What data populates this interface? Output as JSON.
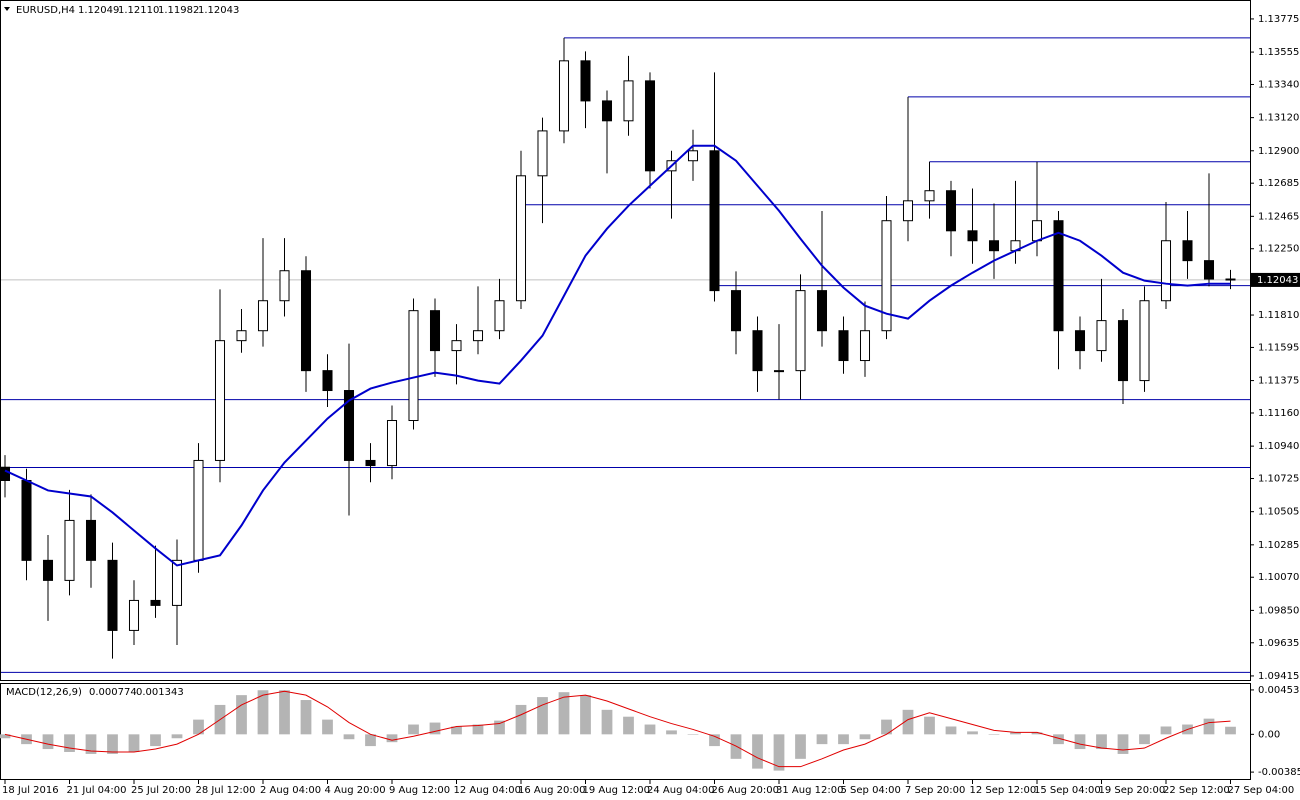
{
  "chart_data": [
    {
      "type": "candlestick",
      "symbol": "EURUSD,H4",
      "ohlc_labels": [
        "1.12049",
        "1.12110",
        "1.11982",
        "1.12043"
      ],
      "categories": [
        "18 Jul 2016",
        null,
        null,
        "21 Jul 04:00",
        null,
        null,
        "25 Jul 20:00",
        null,
        null,
        "28 Jul 12:00",
        null,
        null,
        "2 Aug 04:00",
        null,
        null,
        "4 Aug 20:00",
        null,
        null,
        "9 Aug 12:00",
        null,
        null,
        "12 Aug 04:00",
        null,
        null,
        "16 Aug 20:00",
        null,
        null,
        "19 Aug 12:00",
        null,
        null,
        "24 Aug 04:00",
        null,
        null,
        "26 Aug 20:00",
        null,
        null,
        "31 Aug 12:00",
        null,
        null,
        "5 Sep 04:00",
        null,
        null,
        "7 Sep 20:00",
        null,
        null,
        "12 Sep 12:00",
        null,
        null,
        "15 Sep 04:00",
        null,
        null,
        "19 Sep 20:00",
        null,
        null,
        "22 Sep 12:00",
        null,
        null,
        "27 Sep 04:00"
      ],
      "open": [
        1.108,
        1.10712,
        1.10182,
        1.10049,
        1.10447,
        1.10182,
        1.09717,
        1.09916,
        1.09883,
        1.10182,
        1.10845,
        1.1164,
        1.11706,
        1.11905,
        1.12104,
        1.11441,
        1.11309,
        1.10845,
        1.10811,
        1.1111,
        1.11839,
        1.11574,
        1.1164,
        1.11706,
        1.11905,
        1.12734,
        1.13032,
        1.13497,
        1.13231,
        1.13099,
        1.13364,
        1.12767,
        1.12834,
        1.129,
        1.11972,
        1.11706,
        1.11441,
        1.11441,
        1.11972,
        1.11706,
        1.11508,
        1.11706,
        1.12436,
        1.12568,
        1.12635,
        1.12369,
        1.12303,
        1.12237,
        1.12303,
        1.12436,
        1.11706,
        1.11574,
        1.11773,
        1.11375,
        1.11905,
        1.12303,
        1.12171,
        1.12049
      ],
      "high": [
        1.1088,
        1.1079,
        1.1035,
        1.1065,
        1.1062,
        1.103,
        1.1005,
        1.1028,
        1.1032,
        1.1096,
        1.1198,
        1.1185,
        1.1232,
        1.1232,
        1.122,
        1.1155,
        1.1162,
        1.1096,
        1.1121,
        1.1192,
        1.1192,
        1.1175,
        1.12,
        1.1205,
        1.129,
        1.1312,
        1.13649,
        1.1356,
        1.133,
        1.1353,
        1.1342,
        1.129,
        1.1304,
        1.1342,
        1.121,
        1.118,
        1.1175,
        1.1208,
        1.125,
        1.118,
        1.119,
        1.126,
        1.13258,
        1.12827,
        1.127,
        1.1265,
        1.1255,
        1.127,
        1.12827,
        1.125,
        1.118,
        1.1205,
        1.1185,
        1.12,
        1.1256,
        1.125,
        1.1275,
        1.1211
      ],
      "low": [
        1.106,
        1.1005,
        1.0978,
        1.0995,
        1.1,
        1.0953,
        1.0962,
        1.098,
        1.0962,
        1.101,
        1.107,
        1.1156,
        1.116,
        1.118,
        1.113,
        1.112,
        1.1048,
        1.107,
        1.1072,
        1.1105,
        1.114,
        1.1135,
        1.1155,
        1.1165,
        1.1185,
        1.1242,
        1.1295,
        1.1305,
        1.1275,
        1.13,
        1.1265,
        1.1245,
        1.127,
        1.119,
        1.1155,
        1.113,
        1.1125,
        1.1125,
        1.116,
        1.1142,
        1.114,
        1.1165,
        1.123,
        1.1245,
        1.122,
        1.1215,
        1.1205,
        1.1215,
        1.122,
        1.1145,
        1.1145,
        1.115,
        1.1122,
        1.113,
        1.1185,
        1.1205,
        1.12,
        1.11982
      ],
      "close": [
        1.10712,
        1.10182,
        1.10049,
        1.10447,
        1.10182,
        1.09717,
        1.09916,
        1.09883,
        1.10182,
        1.10845,
        1.1164,
        1.11706,
        1.11905,
        1.12104,
        1.11441,
        1.11309,
        1.10845,
        1.10811,
        1.1111,
        1.11839,
        1.11574,
        1.1164,
        1.11706,
        1.11905,
        1.12734,
        1.13032,
        1.13497,
        1.13231,
        1.13099,
        1.13364,
        1.12767,
        1.12834,
        1.129,
        1.11972,
        1.11706,
        1.11441,
        1.11441,
        1.11972,
        1.11706,
        1.11508,
        1.11706,
        1.12436,
        1.12568,
        1.12635,
        1.12369,
        1.12303,
        1.12237,
        1.12303,
        1.12436,
        1.11706,
        1.11574,
        1.11773,
        1.11375,
        1.11905,
        1.12303,
        1.12171,
        1.12049,
        1.12043
      ],
      "ma": {
        "color": "#0000cc",
        "values": [
          1.10778,
          1.10712,
          1.10646,
          1.10626,
          1.10606,
          1.105,
          1.1038,
          1.10261,
          1.10148,
          1.10182,
          1.10215,
          1.10414,
          1.10646,
          1.10831,
          1.10977,
          1.11123,
          1.11242,
          1.11322,
          1.11362,
          1.11395,
          1.11428,
          1.11408,
          1.11375,
          1.11355,
          1.11508,
          1.11673,
          1.11938,
          1.12204,
          1.12383,
          1.12535,
          1.12668,
          1.128,
          1.12933,
          1.12933,
          1.12834,
          1.12668,
          1.12502,
          1.12316,
          1.12137,
          1.11992,
          1.11872,
          1.11819,
          1.11786,
          1.11905,
          1.12005,
          1.12091,
          1.12171,
          1.12237,
          1.12303,
          1.12356,
          1.12303,
          1.12204,
          1.12091,
          1.12038,
          1.12018,
          1.12005,
          1.12018,
          1.12018
        ]
      },
      "hlines": [
        {
          "value": 1.13649,
          "from": 26
        },
        {
          "value": 1.13258,
          "from": 42
        },
        {
          "value": 1.12827,
          "from": 43
        },
        {
          "value": 1.12542,
          "from": 24
        },
        {
          "value": 1.12005,
          "from": 33
        },
        {
          "value": 1.11249,
          "from": 0
        },
        {
          "value": 1.10798,
          "from": 0
        },
        {
          "value": 1.09439,
          "from": 0
        }
      ],
      "hline_color": "#0000aa",
      "ylim": [
        1.09388,
        1.13894
      ],
      "yticks": [
        1.13775,
        1.13555,
        {
          "value": 1.1334,
          "label": "1.13340"
        },
        {
          "value": 1.1312,
          "label": "1.13120"
        },
        {
          "value": 1.129,
          "label": "1.12900"
        },
        1.12685,
        1.12465,
        {
          "value": 1.1225,
          "label": "1.12250"
        },
        {
          "value": 1.1181,
          "label": "1.11810"
        },
        1.11595,
        1.11375,
        {
          "value": 1.1116,
          "label": "1.11160"
        },
        {
          "value": 1.1094,
          "label": "1.10940"
        },
        1.10725,
        1.10505,
        1.10285,
        {
          "value": 1.1007,
          "label": "1.10070"
        },
        {
          "value": 1.0985,
          "label": "1.09850"
        },
        1.09635,
        1.09415
      ]
    },
    {
      "type": "macd",
      "title": "MACD(12,26,9)",
      "histogram": {
        "color": "#b4b4b4",
        "values": [
          -0.0004,
          -0.001,
          -0.0015,
          -0.0018,
          -0.002,
          -0.002,
          -0.0018,
          -0.0012,
          -0.0004,
          0.0015,
          0.003,
          0.004,
          0.0045,
          0.0045,
          0.0035,
          0.0015,
          -0.0005,
          -0.0012,
          -0.0008,
          0.001,
          0.0012,
          0.0008,
          0.001,
          0.0014,
          0.003,
          0.0038,
          0.0043,
          0.004,
          0.0025,
          0.0018,
          0.001,
          0.0004,
          0,
          -0.0012,
          -0.0025,
          -0.0035,
          -0.0037,
          -0.0025,
          -0.001,
          -0.001,
          -0.0005,
          0.0015,
          0.0025,
          0.0018,
          0.0008,
          0.0003,
          0,
          0.0002,
          0.0002,
          -0.001,
          -0.0015,
          -0.0015,
          -0.002,
          -0.001,
          0.0008,
          0.001,
          0.0016,
          0.000774
        ]
      },
      "signal": {
        "color": "#e00000",
        "values": [
          0,
          -0.0005,
          -0.001,
          -0.0014,
          -0.0017,
          -0.0018,
          -0.0018,
          -0.0015,
          -0.001,
          0,
          0.0015,
          0.003,
          0.004,
          0.0044,
          0.004,
          0.0028,
          0.0012,
          0,
          -0.0006,
          -0.0002,
          0.0003,
          0.0008,
          0.0009,
          0.0011,
          0.002,
          0.003,
          0.0038,
          0.004,
          0.0034,
          0.0026,
          0.0018,
          0.0011,
          0.0005,
          -0.0002,
          -0.0012,
          -0.0024,
          -0.0033,
          -0.0033,
          -0.0025,
          -0.0016,
          -0.001,
          0,
          0.0015,
          0.0022,
          0.0016,
          0.001,
          0.0004,
          0.0002,
          0.0002,
          -0.0004,
          -0.001,
          -0.0014,
          -0.0016,
          -0.0014,
          -0.0004,
          0.0005,
          0.0012,
          0.001343
        ]
      },
      "ylim": [
        -0.00466,
        0.005136
      ],
      "yticks": [
        0.004532,
        {
          "value": 0,
          "label": "0.00"
        },
        -0.003854
      ]
    }
  ]
}
